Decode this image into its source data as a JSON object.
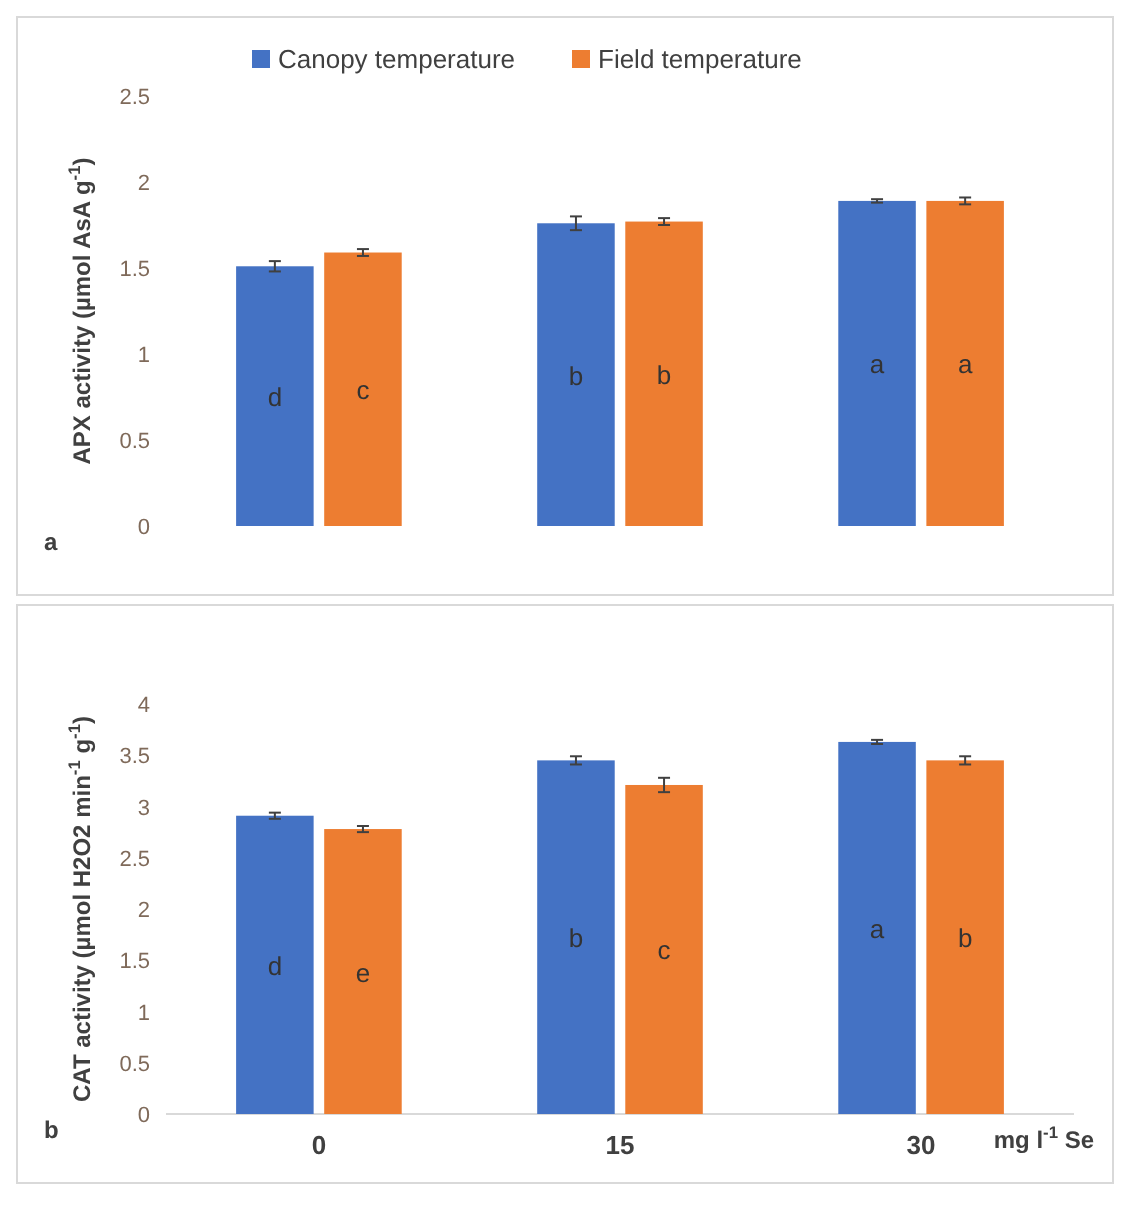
{
  "chart_data": [
    {
      "type": "bar",
      "ylabel": "APX activity (µmol AsA g$^{-1}$)",
      "categories": [
        "0",
        "15",
        "30"
      ],
      "ylim": [
        0,
        2.5
      ],
      "yticks": [
        0,
        0.5,
        1,
        1.5,
        2,
        2.5
      ],
      "tick_labels": "y",
      "legend": "top",
      "annotations": [
        "a"
      ],
      "series": [
        {
          "name": "Canopy temperature",
          "color": "#4472c4",
          "values": [
            1.51,
            1.76,
            1.89
          ],
          "errors": [
            0.03,
            0.04,
            0.01
          ],
          "value_labels": [
            "d",
            "b",
            "a"
          ]
        },
        {
          "name": "Field temperature",
          "color": "#ed7d31",
          "values": [
            1.59,
            1.77,
            1.89
          ],
          "errors": [
            0.02,
            0.02,
            0.02
          ],
          "value_labels": [
            "c",
            "b",
            "a"
          ]
        }
      ]
    },
    {
      "type": "bar",
      "ylabel": "CAT activity (µmol H2O2 min$^{-1}$ g$^{-1}$)",
      "xlabel": "mg l$^{-1}$ Se",
      "categories": [
        "0",
        "15",
        "30"
      ],
      "ylim": [
        0,
        4
      ],
      "yticks": [
        0,
        0.5,
        1,
        1.5,
        2,
        2.5,
        3,
        3.5,
        4
      ],
      "annotations": [
        "b"
      ],
      "series": [
        {
          "color": "#4472c4",
          "values": [
            2.91,
            3.45,
            3.63
          ],
          "errors": [
            0.03,
            0.04,
            0.02
          ],
          "value_labels": [
            "d",
            "b",
            "a"
          ]
        },
        {
          "color": "#ed7d31",
          "values": [
            2.78,
            3.21,
            3.45
          ],
          "errors": [
            0.03,
            0.07,
            0.04
          ],
          "value_labels": [
            "e",
            "c",
            "b"
          ]
        }
      ]
    }
  ]
}
